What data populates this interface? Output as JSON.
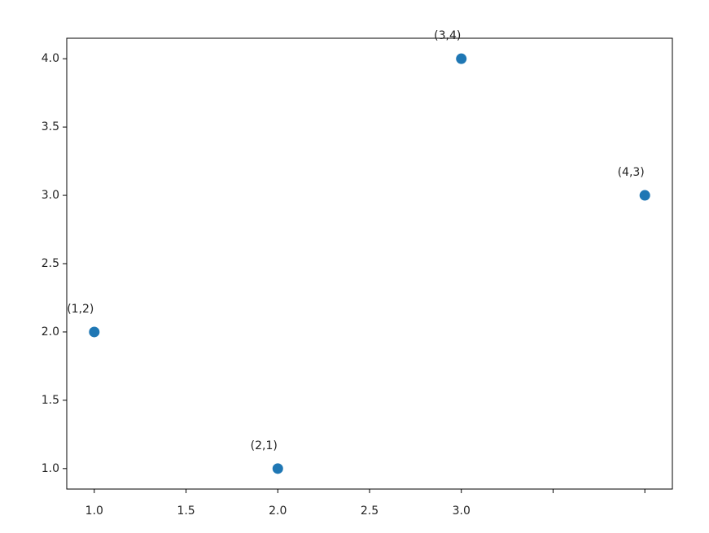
{
  "chart_data": {
    "type": "scatter",
    "x": [
      1,
      2,
      3,
      4
    ],
    "series": [
      {
        "color": "#1f77b4",
        "values": [
          2,
          1,
          4,
          3
        ],
        "annotations": [
          "(1,2)",
          "(2,1)",
          "(3,4)",
          "(4,3)"
        ]
      }
    ],
    "xlim": [
      0.85,
      4.15
    ],
    "ylim": [
      0.85,
      4.15
    ],
    "xticks": [
      {
        "value": 1,
        "label": "1.0"
      },
      1.5,
      {
        "value": 2,
        "label": "2.0"
      },
      2.5,
      {
        "value": 3,
        "label": "3.0"
      },
      {
        "value": 3.5,
        "label": null
      },
      {
        "value": 4,
        "label": null
      }
    ],
    "yticks": [
      {
        "value": 1,
        "label": "1.0"
      },
      1.5,
      {
        "value": 2,
        "label": "2.0"
      },
      2.5,
      {
        "value": 3,
        "label": "3.0"
      },
      3.5,
      {
        "value": 4,
        "label": "4.0"
      }
    ],
    "grid": false
  }
}
